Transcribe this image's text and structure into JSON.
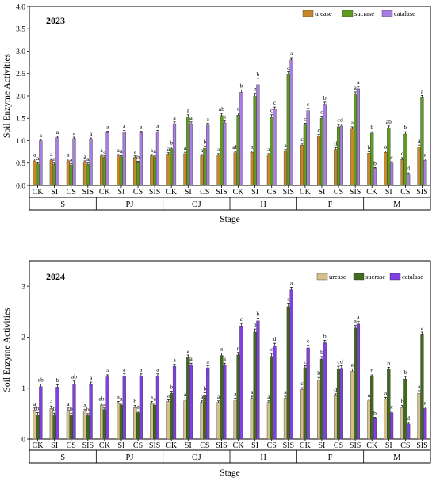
{
  "chart_data": [
    {
      "type": "bar",
      "title": "2023",
      "xlabel": "Stage",
      "ylabel": "Soil Enzyme Activities",
      "ylim": [
        0,
        4.0
      ],
      "yticks": [
        "0.0",
        "0.5",
        "1.0",
        "1.5",
        "2.0",
        "2.5",
        "3.0",
        "3.5",
        "4.0"
      ],
      "legend_position": "top-right",
      "groups": [
        "S",
        "PJ",
        "OJ",
        "H",
        "F",
        "M"
      ],
      "categories": [
        "CK",
        "SI",
        "CS",
        "SIS"
      ],
      "colors": [
        "#c8882a",
        "#5e9b1d",
        "#a87ee0"
      ],
      "series": [
        {
          "name": "urease",
          "values": [
            [
              0.55,
              0.57,
              0.55,
              0.52
            ],
            [
              0.66,
              0.66,
              0.63,
              0.66
            ],
            [
              0.7,
              0.71,
              0.66,
              0.68
            ],
            [
              0.73,
              0.74,
              0.68,
              0.77
            ],
            [
              0.9,
              1.1,
              0.8,
              1.26
            ],
            [
              0.72,
              0.74,
              0.58,
              0.86
            ]
          ],
          "errors": [
            [
              0.04,
              0.03,
              0.04,
              0.03
            ],
            [
              0.03,
              0.03,
              0.03,
              0.03
            ],
            [
              0.03,
              0.03,
              0.03,
              0.03
            ],
            [
              0.03,
              0.03,
              0.03,
              0.03
            ],
            [
              0.04,
              0.04,
              0.04,
              0.05
            ],
            [
              0.03,
              0.03,
              0.04,
              0.04
            ]
          ],
          "labels": [
            [
              "a",
              "a",
              "a",
              "a"
            ],
            [
              "a",
              "a",
              "a",
              "a"
            ],
            [
              "a",
              "a",
              "a",
              "a"
            ],
            [
              "ab",
              "a",
              "a",
              "a"
            ],
            [
              "c",
              "c",
              "d",
              "a"
            ],
            [
              "b",
              "a",
              "c",
              "a"
            ]
          ]
        },
        {
          "name": "sucrase",
          "values": [
            [
              0.48,
              0.47,
              0.46,
              0.47
            ],
            [
              0.63,
              0.64,
              0.51,
              0.64
            ],
            [
              0.82,
              1.53,
              0.83,
              1.56
            ],
            [
              1.57,
              1.99,
              1.52,
              2.49
            ],
            [
              1.35,
              1.5,
              1.31,
              2.04
            ],
            [
              1.17,
              1.29,
              1.15,
              1.96
            ]
          ],
          "errors": [
            [
              0.03,
              0.03,
              0.03,
              0.03
            ],
            [
              0.03,
              0.03,
              0.03,
              0.03
            ],
            [
              0.04,
              0.05,
              0.05,
              0.05
            ],
            [
              0.05,
              0.07,
              0.06,
              0.05
            ],
            [
              0.04,
              0.05,
              0.05,
              0.05
            ],
            [
              0.03,
              0.04,
              0.05,
              0.05
            ]
          ],
          "labels": [
            [
              "a",
              "a",
              "a",
              "a"
            ],
            [
              "a",
              "a",
              "b",
              "a"
            ],
            [
              "b",
              "a",
              "b",
              "ab"
            ],
            [
              "c",
              "b",
              "c",
              "a"
            ],
            [
              "c",
              "c",
              "c",
              "a"
            ],
            [
              "b",
              "ab",
              "b",
              "a"
            ]
          ]
        },
        {
          "name": "catalase",
          "values": [
            [
              1.0,
              1.07,
              1.05,
              1.03
            ],
            [
              1.18,
              1.2,
              1.18,
              1.2
            ],
            [
              1.38,
              1.38,
              1.35,
              1.4
            ],
            [
              2.08,
              2.25,
              1.7,
              2.8
            ],
            [
              1.67,
              1.81,
              1.33,
              2.16
            ],
            [
              0.38,
              0.5,
              0.26,
              0.56
            ]
          ],
          "errors": [
            [
              0.03,
              0.03,
              0.03,
              0.03
            ],
            [
              0.03,
              0.03,
              0.03,
              0.03
            ],
            [
              0.04,
              0.04,
              0.04,
              0.04
            ],
            [
              0.05,
              0.14,
              0.05,
              0.05
            ],
            [
              0.05,
              0.05,
              0.04,
              0.05
            ],
            [
              0.02,
              0.03,
              0.02,
              0.03
            ]
          ],
          "labels": [
            [
              "a",
              "a",
              "a",
              "a"
            ],
            [
              "a",
              "a",
              "a",
              "a"
            ],
            [
              "a",
              "a",
              "a",
              "a"
            ],
            [
              "b",
              "b",
              "c",
              "a"
            ],
            [
              "c",
              "b",
              "d",
              "a"
            ],
            [
              "b",
              "c",
              "d",
              "a"
            ]
          ]
        }
      ]
    },
    {
      "type": "bar",
      "title": "2024",
      "xlabel": "Stage",
      "ylabel": "Soil Enzyme Activities",
      "ylim": [
        0,
        3.5
      ],
      "yticks": [
        "0",
        "1",
        "2",
        "3"
      ],
      "legend_position": "top-right",
      "groups": [
        "S",
        "PJ",
        "OJ",
        "H",
        "F",
        "M"
      ],
      "categories": [
        "CK",
        "SI",
        "CS",
        "SIS"
      ],
      "colors": [
        "#d6c08a",
        "#3f6a1b",
        "#7f3fe2"
      ],
      "series": [
        {
          "name": "urease",
          "values": [
            [
              0.57,
              0.6,
              0.57,
              0.55
            ],
            [
              0.67,
              0.7,
              0.62,
              0.7
            ],
            [
              0.74,
              0.75,
              0.72,
              0.72
            ],
            [
              0.75,
              0.8,
              0.72,
              0.8
            ],
            [
              0.97,
              1.16,
              0.85,
              1.33
            ],
            [
              0.75,
              0.78,
              0.62,
              0.9
            ]
          ],
          "errors": [
            [
              0.04,
              0.05,
              0.04,
              0.03
            ],
            [
              0.04,
              0.04,
              0.04,
              0.04
            ],
            [
              0.03,
              0.04,
              0.03,
              0.03
            ],
            [
              0.05,
              0.04,
              0.03,
              0.04
            ],
            [
              0.04,
              0.05,
              0.04,
              0.05
            ],
            [
              0.03,
              0.04,
              0.04,
              0.05
            ]
          ],
          "labels": [
            [
              "a",
              "a",
              "a",
              "a"
            ],
            [
              "ab",
              "a",
              "b",
              "a"
            ],
            [
              "a",
              "a",
              "a",
              "a"
            ],
            [
              "a",
              "a",
              "a",
              "a"
            ],
            [
              "c",
              "b",
              "d",
              "a"
            ],
            [
              "a",
              "a",
              "b",
              "a"
            ]
          ]
        },
        {
          "name": "sucrase",
          "values": [
            [
              0.48,
              0.47,
              0.47,
              0.46
            ],
            [
              0.58,
              0.67,
              0.52,
              0.67
            ],
            [
              0.9,
              1.6,
              0.86,
              1.64
            ],
            [
              1.65,
              2.1,
              1.62,
              2.6
            ],
            [
              1.4,
              1.57,
              1.38,
              2.18
            ],
            [
              1.23,
              1.37,
              1.18,
              2.05
            ]
          ],
          "errors": [
            [
              0.04,
              0.04,
              0.04,
              0.04
            ],
            [
              0.03,
              0.04,
              0.03,
              0.04
            ],
            [
              0.04,
              0.05,
              0.05,
              0.05
            ],
            [
              0.05,
              0.06,
              0.06,
              0.07
            ],
            [
              0.04,
              0.05,
              0.05,
              0.05
            ],
            [
              0.03,
              0.04,
              0.05,
              0.05
            ]
          ],
          "labels": [
            [
              "b",
              "b",
              "b",
              "b"
            ],
            [
              "a",
              "a",
              "a",
              "a"
            ],
            [
              "b",
              "a",
              "b",
              "a"
            ],
            [
              "c",
              "b",
              "c",
              "a"
            ],
            [
              "c",
              "b",
              "c",
              "a"
            ],
            [
              "b",
              "b",
              "b",
              "a"
            ]
          ]
        },
        {
          "name": "catalase",
          "values": [
            [
              1.03,
              1.02,
              1.08,
              1.07
            ],
            [
              1.22,
              1.24,
              1.24,
              1.24
            ],
            [
              1.43,
              1.45,
              1.4,
              1.45
            ],
            [
              2.22,
              2.32,
              1.83,
              2.93
            ],
            [
              1.79,
              1.89,
              1.39,
              2.26
            ],
            [
              0.4,
              0.52,
              0.3,
              0.6
            ]
          ],
          "errors": [
            [
              0.05,
              0.05,
              0.06,
              0.05
            ],
            [
              0.04,
              0.04,
              0.04,
              0.04
            ],
            [
              0.04,
              0.04,
              0.04,
              0.04
            ],
            [
              0.05,
              0.05,
              0.05,
              0.05
            ],
            [
              0.05,
              0.05,
              0.05,
              0.05
            ],
            [
              0.03,
              0.03,
              0.03,
              0.03
            ]
          ],
          "labels": [
            [
              "ab",
              "b",
              "ab",
              "a"
            ],
            [
              "a",
              "a",
              "a",
              "a"
            ],
            [
              "a",
              "a",
              "a",
              "a"
            ],
            [
              "c",
              "b",
              "d",
              "a"
            ],
            [
              "c",
              "b",
              "d",
              "a"
            ],
            [
              "b",
              "c",
              "d",
              "a"
            ]
          ]
        }
      ]
    }
  ]
}
